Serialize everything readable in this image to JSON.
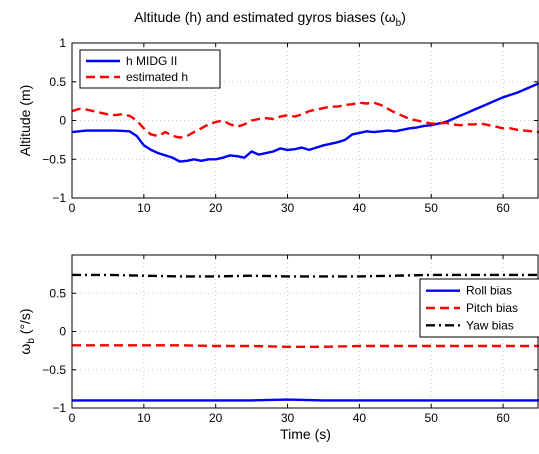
{
  "chart_data": [
    {
      "type": "line",
      "title": "Altitude (h) and estimated gyros biases (ωb)",
      "title_main": "Altitude (h) and estimated gyros biases (ω",
      "title_sub": "b",
      "title_end": ")",
      "xlabel": "",
      "ylabel": "Altitude (m)",
      "xlim": [
        0,
        65
      ],
      "ylim": [
        -1,
        1
      ],
      "xticks": [
        0,
        10,
        20,
        30,
        40,
        50,
        60
      ],
      "yticks": [
        -1,
        -0.5,
        0,
        0.5,
        1
      ],
      "ytick_labels": [
        "−1",
        "−0.5",
        "0",
        "0.5",
        "1"
      ],
      "grid": true,
      "legend_position": "top-left",
      "series": [
        {
          "name": "h MIDG II",
          "color": "#0000ff",
          "style": "solid",
          "x": [
            0,
            2,
            4,
            6,
            8,
            9,
            10,
            11,
            12,
            13,
            14,
            15,
            16,
            17,
            18,
            19,
            20,
            21,
            22,
            23,
            24,
            25,
            26,
            27,
            28,
            29,
            30,
            31,
            32,
            33,
            34,
            35,
            36,
            37,
            38,
            39,
            40,
            41,
            42,
            43,
            44,
            45,
            46,
            47,
            48,
            49,
            50,
            51,
            52,
            53,
            54,
            55,
            56,
            57,
            58,
            59,
            60,
            61,
            62,
            63,
            64,
            65
          ],
          "y": [
            -0.15,
            -0.13,
            -0.13,
            -0.13,
            -0.14,
            -0.2,
            -0.32,
            -0.38,
            -0.42,
            -0.45,
            -0.48,
            -0.53,
            -0.52,
            -0.5,
            -0.52,
            -0.5,
            -0.5,
            -0.48,
            -0.45,
            -0.46,
            -0.48,
            -0.4,
            -0.44,
            -0.42,
            -0.4,
            -0.36,
            -0.38,
            -0.37,
            -0.35,
            -0.38,
            -0.35,
            -0.32,
            -0.3,
            -0.28,
            -0.25,
            -0.18,
            -0.16,
            -0.14,
            -0.15,
            -0.14,
            -0.13,
            -0.14,
            -0.12,
            -0.1,
            -0.09,
            -0.07,
            -0.06,
            -0.04,
            -0.02,
            0.02,
            0.06,
            0.1,
            0.14,
            0.18,
            0.22,
            0.26,
            0.3,
            0.33,
            0.36,
            0.4,
            0.44,
            0.48
          ]
        },
        {
          "name": "estimated h",
          "color": "#ff0000",
          "style": "dashed",
          "x": [
            0,
            1,
            2,
            3,
            4,
            5,
            6,
            7,
            8,
            9,
            10,
            11,
            12,
            13,
            14,
            15,
            16,
            17,
            18,
            19,
            20,
            21,
            22,
            23,
            24,
            25,
            26,
            27,
            28,
            29,
            30,
            31,
            32,
            33,
            34,
            35,
            36,
            37,
            38,
            39,
            40,
            41,
            42,
            43,
            44,
            45,
            46,
            47,
            48,
            49,
            50,
            51,
            52,
            53,
            54,
            55,
            56,
            57,
            58,
            59,
            60,
            61,
            62,
            63,
            64,
            65
          ],
          "y": [
            0.12,
            0.15,
            0.14,
            0.12,
            0.1,
            0.08,
            0.07,
            0.08,
            0.06,
            0.0,
            -0.1,
            -0.18,
            -0.2,
            -0.15,
            -0.2,
            -0.22,
            -0.2,
            -0.15,
            -0.1,
            -0.05,
            -0.02,
            0.0,
            -0.05,
            -0.08,
            -0.05,
            0.0,
            0.02,
            0.03,
            0.02,
            0.05,
            0.07,
            0.05,
            0.08,
            0.12,
            0.14,
            0.16,
            0.18,
            0.18,
            0.2,
            0.21,
            0.23,
            0.22,
            0.23,
            0.2,
            0.15,
            0.1,
            0.06,
            0.02,
            0.0,
            -0.02,
            -0.04,
            -0.04,
            -0.03,
            -0.05,
            -0.06,
            -0.05,
            -0.05,
            -0.04,
            -0.06,
            -0.08,
            -0.1,
            -0.1,
            -0.12,
            -0.13,
            -0.14,
            -0.15
          ]
        }
      ]
    },
    {
      "type": "line",
      "title": "",
      "xlabel": "Time (s)",
      "ylabel": "ωb (°/s)",
      "ylabel_main": "ω",
      "ylabel_sub": "b",
      "ylabel_end": " (°/s)",
      "xlim": [
        0,
        65
      ],
      "ylim": [
        -1,
        1
      ],
      "xticks": [
        0,
        10,
        20,
        30,
        40,
        50,
        60
      ],
      "yticks": [
        -1,
        -0.5,
        0,
        0.5
      ],
      "ytick_labels": [
        "−1",
        "−0.5",
        "0",
        "0.5"
      ],
      "grid": true,
      "legend_position": "right",
      "series": [
        {
          "name": "Roll bias",
          "color": "#0000ff",
          "style": "solid",
          "x": [
            0,
            5,
            10,
            15,
            20,
            25,
            30,
            35,
            40,
            45,
            50,
            55,
            60,
            65
          ],
          "y": [
            -0.9,
            -0.9,
            -0.9,
            -0.9,
            -0.9,
            -0.9,
            -0.89,
            -0.9,
            -0.9,
            -0.9,
            -0.9,
            -0.9,
            -0.9,
            -0.9
          ]
        },
        {
          "name": "Pitch bias",
          "color": "#ff0000",
          "style": "dashed",
          "x": [
            0,
            5,
            10,
            15,
            20,
            25,
            30,
            35,
            40,
            45,
            50,
            55,
            60,
            65
          ],
          "y": [
            -0.18,
            -0.18,
            -0.18,
            -0.18,
            -0.19,
            -0.19,
            -0.2,
            -0.2,
            -0.19,
            -0.19,
            -0.19,
            -0.19,
            -0.19,
            -0.19
          ]
        },
        {
          "name": "Yaw bias",
          "color": "#000000",
          "style": "dashdot",
          "x": [
            0,
            5,
            10,
            15,
            20,
            25,
            30,
            35,
            40,
            45,
            50,
            55,
            60,
            65
          ],
          "y": [
            0.74,
            0.74,
            0.73,
            0.72,
            0.72,
            0.73,
            0.72,
            0.72,
            0.72,
            0.73,
            0.74,
            0.74,
            0.74,
            0.74
          ]
        }
      ]
    }
  ]
}
